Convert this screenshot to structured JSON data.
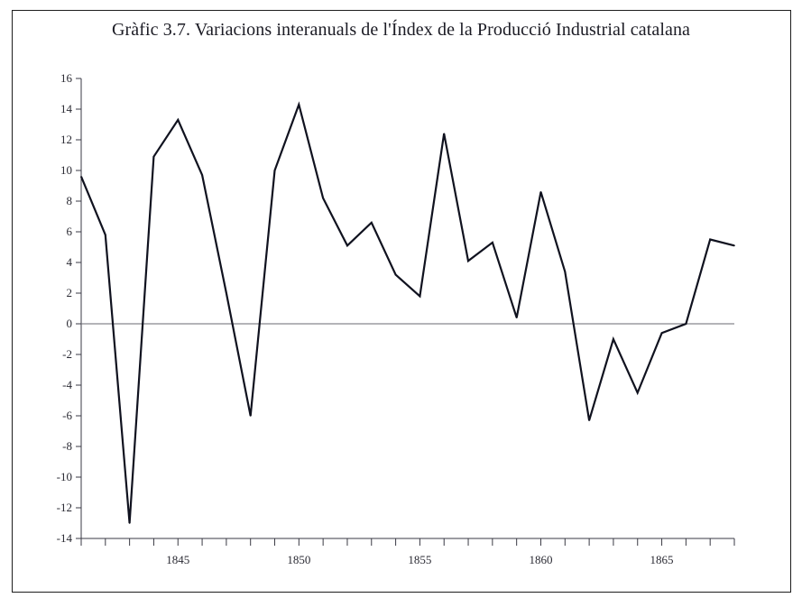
{
  "chart_data": {
    "type": "line",
    "title": "Gràfic 3.7. Variacions interanuals de l'Índex de la Producció Industrial catalana",
    "xlabel": "",
    "ylabel": "",
    "xlim": [
      1841,
      1868
    ],
    "ylim": [
      -14,
      16
    ],
    "yticks": [
      16,
      14,
      12,
      10,
      8,
      6,
      4,
      2,
      0,
      -2,
      -4,
      -6,
      -8,
      -10,
      -12,
      -14
    ],
    "ytick_labels": [
      "16",
      "14",
      "12",
      "10",
      "8",
      "6",
      "4",
      "2",
      "0",
      "-2",
      "-4",
      "-6",
      "-8",
      "-10",
      "-12",
      "-14"
    ],
    "xticks_minor": [
      1841,
      1842,
      1843,
      1844,
      1845,
      1846,
      1847,
      1848,
      1849,
      1850,
      1851,
      1852,
      1853,
      1854,
      1855,
      1856,
      1857,
      1858,
      1859,
      1860,
      1861,
      1862,
      1863,
      1864,
      1865,
      1866,
      1867,
      1868
    ],
    "xtick_labels": [
      {
        "x": 1845,
        "label": "1845"
      },
      {
        "x": 1850,
        "label": "1850"
      },
      {
        "x": 1855,
        "label": "1855"
      },
      {
        "x": 1860,
        "label": "1860"
      },
      {
        "x": 1865,
        "label": "1865"
      }
    ],
    "zero_line": true,
    "grid": false,
    "series": [
      {
        "x": [
          1841,
          1842,
          1843,
          1844,
          1845,
          1846,
          1847,
          1848,
          1849,
          1850,
          1851,
          1852,
          1853,
          1854,
          1855,
          1856,
          1857,
          1858,
          1859,
          1860,
          1861,
          1862,
          1863,
          1864,
          1865,
          1866,
          1867,
          1868
        ],
        "values": [
          9.6,
          5.8,
          -13.0,
          10.9,
          13.3,
          9.7,
          2.0,
          -6.0,
          10.0,
          14.3,
          8.2,
          5.1,
          6.6,
          3.2,
          1.8,
          12.4,
          4.1,
          5.3,
          0.4,
          8.6,
          3.4,
          -6.3,
          -1.0,
          -4.5,
          -0.6,
          0.0,
          5.5,
          5.1
        ]
      }
    ],
    "colors": {
      "line": "#10121f",
      "axis": "#3a3a44",
      "zero_line": "#6a6a72",
      "text": "#1b1b24"
    }
  }
}
